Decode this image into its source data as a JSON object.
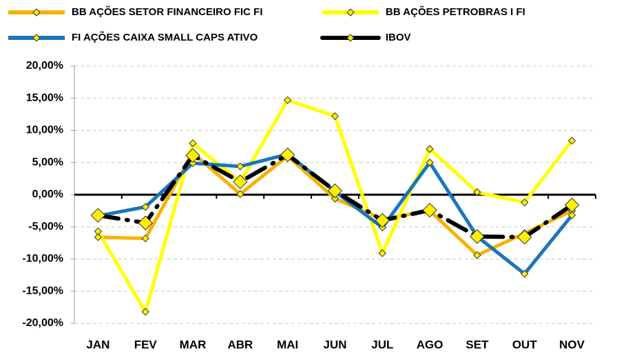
{
  "chart_data": {
    "type": "line",
    "categories": [
      "JAN",
      "FEV",
      "MAR",
      "ABR",
      "MAI",
      "JUN",
      "JUL",
      "AGO",
      "SET",
      "OUT",
      "NOV"
    ],
    "series": [
      {
        "name": "BB AÇÕES SETOR FINANCEIRO FIC FI",
        "color": "#f5b300",
        "values": [
          -6.6,
          -6.8,
          6.5,
          0.1,
          6.0,
          -0.6,
          -3.8,
          -2.5,
          -9.4,
          -6.0,
          -2.5
        ]
      },
      {
        "name": "BB AÇÕES PETROBRAS I FI",
        "color": "#ffff00",
        "values": [
          -5.7,
          -18.2,
          8.0,
          2.0,
          14.7,
          12.2,
          -9.1,
          7.1,
          0.4,
          -1.2,
          8.4
        ]
      },
      {
        "name": "FI AÇÕES CAIXA SMALL CAPS ATIVO",
        "color": "#1a75bc",
        "values": [
          -3.3,
          -1.9,
          4.9,
          4.4,
          6.3,
          0.5,
          -5.1,
          5.0,
          -6.5,
          -12.3,
          -3.2
        ]
      },
      {
        "name": "IBOV",
        "color": "#000000",
        "values": [
          -3.2,
          -4.4,
          6.1,
          2.0,
          6.2,
          0.6,
          -4.0,
          -2.4,
          -6.5,
          -6.6,
          -1.6
        ]
      }
    ],
    "ylim": [
      -20,
      20
    ],
    "yticks": [
      {
        "value": -20,
        "label": "-20,00%"
      },
      {
        "value": -15,
        "label": "-15,00%"
      },
      {
        "value": -10,
        "label": "-10,00%"
      },
      {
        "value": -5,
        "label": "-5,00%"
      },
      {
        "value": 0,
        "label": "0,00%"
      },
      {
        "value": 5,
        "label": "5,00%"
      },
      {
        "value": 10,
        "label": "10,00%"
      },
      {
        "value": 15,
        "label": "15,00%"
      },
      {
        "value": 20,
        "label": "20,00%"
      }
    ],
    "grid": true
  }
}
